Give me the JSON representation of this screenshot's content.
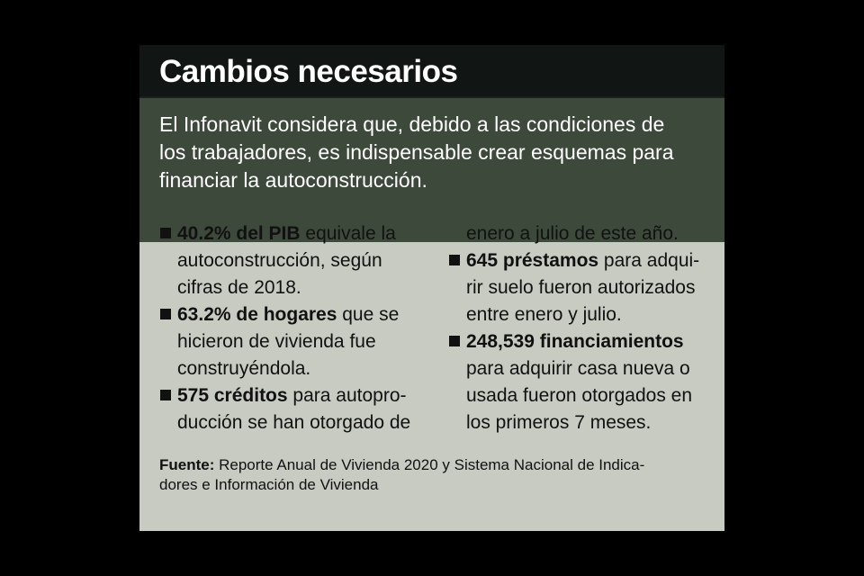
{
  "title": "Cambios necesarios",
  "intro_lines": [
    "El Infonavit considera que, debido a las condiciones de",
    "los trabajadores, es indispensable crear esquemas para",
    "financiar la autoconstrucción."
  ],
  "left_column": [
    {
      "bold": "40.2% del PIB",
      "lines": [
        " equivale la",
        "autoconstrucción, según",
        "cifras de 2018."
      ]
    },
    {
      "bold": "63.2% de hogares",
      "lines": [
        " que se",
        "hicieron de vivienda fue",
        "construyéndola."
      ]
    },
    {
      "bold": "575 créditos",
      "lines": [
        " para autopro-",
        "ducción se han otorgado de"
      ]
    }
  ],
  "right_column_continuation": "enero a julio de este año.",
  "right_column": [
    {
      "bold": "645 préstamos",
      "lines": [
        " para adqui-",
        "rir suelo fueron autorizados",
        "entre enero y julio."
      ]
    },
    {
      "bold": "248,539 financiamientos",
      "lines": [
        "",
        "para adquirir casa nueva o",
        "usada fueron otorgados en",
        "los primeros 7 meses."
      ]
    }
  ],
  "source": {
    "label": "Fuente:",
    "line1": " Reporte Anual de Vivienda 2020 y Sistema Nacional de Indica-",
    "line2": "dores e Información de Vivienda"
  },
  "colors": {
    "background": "#000000",
    "title_bar": "#111513",
    "intro_box": "#3d4a3b",
    "card": "#c8cbc2"
  }
}
